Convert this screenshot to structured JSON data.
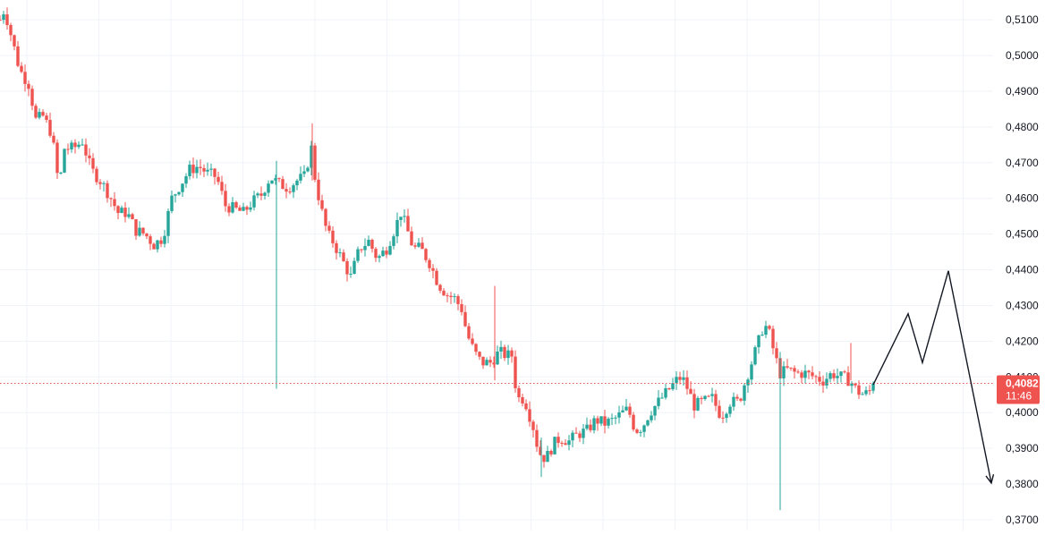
{
  "colors": {
    "up": "#26a69a",
    "down": "#ef5350",
    "grid": "#f0f3fa",
    "axis_text": "#131722",
    "price_line": "#ef5350",
    "price_tag_bg": "#ef5350",
    "price_tag_text": "#ffffff",
    "drawing": "#131722",
    "background": "#ffffff"
  },
  "chart_data": {
    "type": "candlestick",
    "y_axis": {
      "position": "right",
      "range": [
        0.37,
        0.5155
      ],
      "tick_values": [
        0.37,
        0.38,
        0.39,
        0.4,
        0.41,
        0.42,
        0.43,
        0.44,
        0.45,
        0.46,
        0.47,
        0.48,
        0.49,
        0.5,
        0.51
      ],
      "tick_labels": [
        "0,3700",
        "0,3800",
        "0,3900",
        "0,4000",
        "0,4100",
        "0,4200",
        "0,4300",
        "0,4400",
        "0,4500",
        "0,4600",
        "0,4700",
        "0,4800",
        "0,4900",
        "0,5000",
        "0,5100"
      ]
    },
    "grid": true,
    "candle_count": 245,
    "price_path": [
      [
        0,
        0.51
      ],
      [
        5,
        0.513
      ],
      [
        12,
        0.506
      ],
      [
        22,
        0.496
      ],
      [
        32,
        0.492
      ],
      [
        40,
        0.482
      ],
      [
        48,
        0.483
      ],
      [
        58,
        0.478
      ],
      [
        66,
        0.463
      ],
      [
        72,
        0.474
      ],
      [
        82,
        0.474
      ],
      [
        92,
        0.476
      ],
      [
        102,
        0.468
      ],
      [
        112,
        0.465
      ],
      [
        122,
        0.461
      ],
      [
        132,
        0.456
      ],
      [
        142,
        0.456
      ],
      [
        152,
        0.451
      ],
      [
        162,
        0.45
      ],
      [
        172,
        0.447
      ],
      [
        182,
        0.449
      ],
      [
        192,
        0.46
      ],
      [
        202,
        0.464
      ],
      [
        212,
        0.468
      ],
      [
        222,
        0.469
      ],
      [
        232,
        0.467
      ],
      [
        242,
        0.466
      ],
      [
        252,
        0.458
      ],
      [
        262,
        0.457
      ],
      [
        272,
        0.456
      ],
      [
        282,
        0.459
      ],
      [
        292,
        0.461
      ],
      [
        302,
        0.466
      ],
      [
        312,
        0.464
      ],
      [
        322,
        0.463
      ],
      [
        332,
        0.465
      ],
      [
        340,
        0.466
      ],
      [
        348,
        0.474
      ],
      [
        352,
        0.466
      ],
      [
        358,
        0.458
      ],
      [
        366,
        0.45
      ],
      [
        372,
        0.448
      ],
      [
        382,
        0.443
      ],
      [
        392,
        0.438
      ],
      [
        402,
        0.446
      ],
      [
        412,
        0.448
      ],
      [
        422,
        0.443
      ],
      [
        432,
        0.446
      ],
      [
        442,
        0.452
      ],
      [
        448,
        0.456
      ],
      [
        454,
        0.452
      ],
      [
        462,
        0.446
      ],
      [
        470,
        0.446
      ],
      [
        480,
        0.442
      ],
      [
        490,
        0.436
      ],
      [
        500,
        0.433
      ],
      [
        508,
        0.432
      ],
      [
        516,
        0.429
      ],
      [
        522,
        0.422
      ],
      [
        530,
        0.417
      ],
      [
        538,
        0.414
      ],
      [
        548,
        0.414
      ],
      [
        558,
        0.417
      ],
      [
        566,
        0.416
      ],
      [
        572,
        0.416
      ],
      [
        578,
        0.404
      ],
      [
        586,
        0.404
      ],
      [
        596,
        0.396
      ],
      [
        602,
        0.389
      ],
      [
        610,
        0.387
      ],
      [
        618,
        0.391
      ],
      [
        626,
        0.393
      ],
      [
        636,
        0.392
      ],
      [
        646,
        0.394
      ],
      [
        656,
        0.395
      ],
      [
        666,
        0.398
      ],
      [
        676,
        0.397
      ],
      [
        686,
        0.398
      ],
      [
        696,
        0.4
      ],
      [
        702,
        0.401
      ],
      [
        710,
        0.395
      ],
      [
        718,
        0.396
      ],
      [
        726,
        0.4
      ],
      [
        736,
        0.403
      ],
      [
        746,
        0.406
      ],
      [
        756,
        0.409
      ],
      [
        762,
        0.41
      ],
      [
        768,
        0.407
      ],
      [
        776,
        0.402
      ],
      [
        786,
        0.403
      ],
      [
        796,
        0.404
      ],
      [
        806,
        0.399
      ],
      [
        816,
        0.403
      ],
      [
        826,
        0.403
      ],
      [
        832,
        0.408
      ],
      [
        840,
        0.414
      ],
      [
        848,
        0.42
      ],
      [
        854,
        0.425
      ],
      [
        860,
        0.422
      ],
      [
        866,
        0.416
      ],
      [
        872,
        0.411
      ],
      [
        880,
        0.412
      ],
      [
        890,
        0.411
      ],
      [
        900,
        0.411
      ],
      [
        910,
        0.41
      ],
      [
        920,
        0.409
      ],
      [
        930,
        0.411
      ],
      [
        940,
        0.41
      ],
      [
        950,
        0.409
      ],
      [
        958,
        0.406
      ],
      [
        966,
        0.405
      ],
      [
        972,
        0.406
      ],
      [
        976,
        0.4082
      ]
    ],
    "spikes": [
      {
        "x": 309,
        "high": 0.4705,
        "low": 0.4067
      },
      {
        "x": 349,
        "high": 0.481,
        "low": 0.465
      },
      {
        "x": 553,
        "high": 0.4355,
        "low": 0.409
      },
      {
        "x": 872,
        "high": 0.417,
        "low": 0.3727
      },
      {
        "x": 605,
        "high": 0.393,
        "low": 0.382
      },
      {
        "x": 951,
        "high": 0.4195,
        "low": 0.409
      }
    ],
    "current_price": {
      "value": 0.4082,
      "label": "0,4082",
      "countdown": "11:46"
    },
    "projection": {
      "points": [
        [
          976,
          0.4078
        ],
        [
          1015,
          0.4277
        ],
        [
          1031,
          0.414
        ],
        [
          1060,
          0.4397
        ],
        [
          1108,
          0.3803
        ]
      ],
      "arrow_end": true
    }
  }
}
